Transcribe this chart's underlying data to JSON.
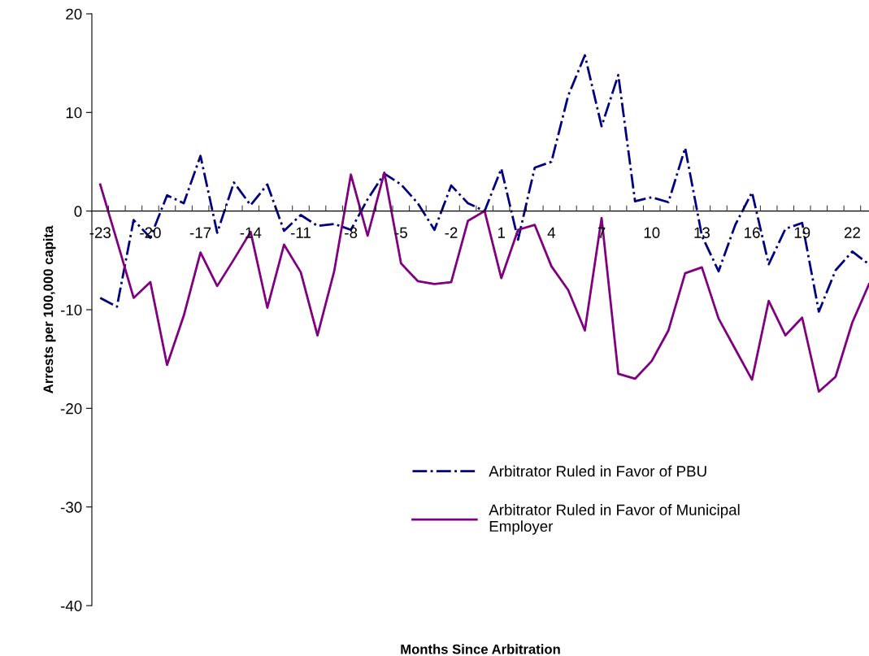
{
  "chart_data": {
    "type": "line",
    "xlabel": "Months Since Arbitration",
    "ylabel": "Arrests per 100,000 capita",
    "categories": [
      "-23",
      null,
      null,
      "-20",
      null,
      null,
      "-17",
      null,
      null,
      "-14",
      null,
      null,
      "-11",
      null,
      null,
      "-8",
      null,
      null,
      "-5",
      null,
      null,
      "-2",
      null,
      null,
      "1",
      null,
      null,
      "4",
      null,
      null,
      "7",
      null,
      null,
      "10",
      null,
      null,
      "13",
      null,
      null,
      "16",
      null,
      null,
      "19",
      null,
      null,
      "22",
      null
    ],
    "ylim": [
      -40,
      20
    ],
    "yticks": [
      -40,
      -30,
      -20,
      -10,
      0,
      10,
      20
    ],
    "grid": false,
    "legend": "bottom right",
    "marker": "none",
    "series": [
      {
        "name": "Arbitrator Ruled in Favor of PBU",
        "color": "#000080",
        "line_style": "dashdot",
        "values": [
          -8.8,
          -9.7,
          -0.9,
          -2.7,
          1.6,
          0.8,
          5.6,
          -2.2,
          2.9,
          0.6,
          2.7,
          -2.0,
          -0.4,
          -1.5,
          -1.3,
          -1.9,
          1.2,
          3.8,
          2.7,
          0.8,
          -1.9,
          2.6,
          0.8,
          0.0,
          4.3,
          -2.9,
          4.4,
          5.0,
          11.7,
          15.8,
          8.6,
          13.8,
          1.0,
          1.4,
          0.9,
          6.4,
          -2.5,
          -6.1,
          -1.4,
          1.9,
          -5.4,
          -1.8,
          -1.2,
          -10.2,
          -6.0,
          -4.1,
          -5.4
        ]
      },
      {
        "name": "Arbitrator Ruled in Favor of Municipal\nEmployer",
        "color": "#800080",
        "line_style": "solid",
        "values": [
          2.7,
          -3.0,
          -8.8,
          -7.2,
          -15.6,
          -10.6,
          -4.2,
          -7.6,
          -4.9,
          -2.1,
          -9.8,
          -3.4,
          -6.2,
          -12.6,
          -6.1,
          3.7,
          -2.5,
          3.9,
          -5.3,
          -7.1,
          -7.4,
          -7.2,
          -1.0,
          0.0,
          -6.8,
          -1.9,
          -1.4,
          -5.6,
          -8.0,
          -12.1,
          -0.7,
          -16.5,
          -17.0,
          -15.2,
          -12.1,
          -6.3,
          -5.7,
          -10.9,
          -14.0,
          -17.1,
          -9.1,
          -12.6,
          -10.8,
          -18.3,
          -16.8,
          -11.3,
          -7.4
        ]
      }
    ]
  }
}
